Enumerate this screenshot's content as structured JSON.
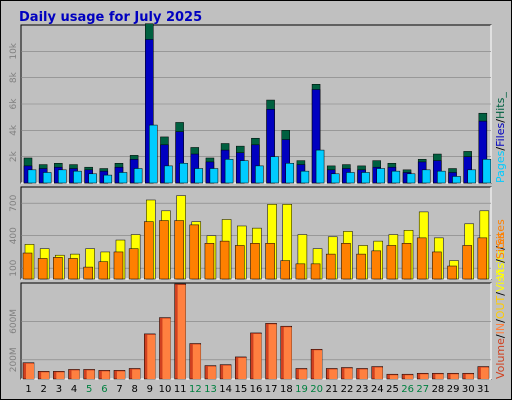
{
  "title": "Daily usage for July 2025",
  "colors": {
    "background": "#c0c0c0",
    "plot_area": "#c0c0c0",
    "hits": "#006040",
    "files": "#0000c0",
    "pages": "#00ccff",
    "visits": "#ffff00",
    "sites": "#ff8000",
    "volume": "#d04020",
    "in": "#ff8040",
    "out": "#ffcc00",
    "weekday_label": "#000000",
    "weekend_label": "#008040",
    "title": "#0000c0",
    "grid": "#808080"
  },
  "chart_data": [
    {
      "type": "bar",
      "panel": "hits",
      "title": "Daily usage for July 2025",
      "categories": [
        "1",
        "2",
        "3",
        "4",
        "5",
        "6",
        "7",
        "8",
        "9",
        "10",
        "11",
        "12",
        "13",
        "14",
        "15",
        "16",
        "17",
        "18",
        "19",
        "20",
        "21",
        "22",
        "23",
        "24",
        "25",
        "26",
        "27",
        "28",
        "29",
        "30",
        "31"
      ],
      "weekend_days": [
        "5",
        "6",
        "12",
        "13",
        "19",
        "20",
        "26",
        "27"
      ],
      "legend": [
        "Pages",
        "/",
        "Files",
        "/",
        "Hits_"
      ],
      "y_tick_labels": [
        "2k",
        "4k",
        "6k",
        "8k",
        "10k"
      ],
      "ylim": [
        0,
        12000
      ],
      "series": [
        {
          "name": "Hits",
          "color": "#006040",
          "values": [
            1900,
            1400,
            1500,
            1400,
            1200,
            1100,
            1500,
            2100,
            12100,
            3500,
            4600,
            2700,
            1900,
            3000,
            2800,
            3400,
            6300,
            4000,
            1700,
            7500,
            1300,
            1400,
            1300,
            1700,
            1500,
            1000,
            1800,
            2200,
            1100,
            2400,
            5300
          ]
        },
        {
          "name": "Files",
          "color": "#0000c0",
          "values": [
            1300,
            1100,
            1200,
            1100,
            1000,
            900,
            1200,
            1800,
            10900,
            2900,
            3900,
            2200,
            1600,
            2500,
            2300,
            2900,
            5600,
            3300,
            1400,
            7100,
            1000,
            1100,
            1000,
            1200,
            1200,
            800,
            1600,
            1700,
            800,
            2000,
            4700
          ]
        },
        {
          "name": "Pages",
          "color": "#00ccff",
          "values": [
            1000,
            800,
            1000,
            900,
            700,
            600,
            800,
            1100,
            4400,
            1300,
            1500,
            1100,
            1100,
            1800,
            1700,
            1300,
            2000,
            1500,
            900,
            2500,
            700,
            800,
            800,
            1100,
            900,
            700,
            1000,
            900,
            500,
            1000,
            1800
          ]
        }
      ]
    },
    {
      "type": "bar",
      "panel": "visits",
      "categories": [
        "1",
        "2",
        "3",
        "4",
        "5",
        "6",
        "7",
        "8",
        "9",
        "10",
        "11",
        "12",
        "13",
        "14",
        "15",
        "16",
        "17",
        "18",
        "19",
        "20",
        "21",
        "22",
        "23",
        "24",
        "25",
        "26",
        "27",
        "28",
        "29",
        "30",
        "31"
      ],
      "legend": [
        "Visits",
        "/",
        "Sites"
      ],
      "y_tick_labels": [
        "100",
        "400",
        "700"
      ],
      "ylim": [
        0,
        850
      ],
      "series": [
        {
          "name": "Visits",
          "color": "#ffff00",
          "values": [
            320,
            280,
            220,
            230,
            280,
            250,
            360,
            410,
            730,
            630,
            770,
            530,
            400,
            550,
            490,
            470,
            690,
            690,
            410,
            280,
            390,
            440,
            310,
            350,
            410,
            450,
            620,
            380,
            170,
            510,
            630
          ]
        },
        {
          "name": "Sites",
          "color": "#ff8000",
          "values": [
            240,
            190,
            200,
            190,
            110,
            160,
            250,
            280,
            530,
            540,
            540,
            500,
            330,
            350,
            310,
            330,
            330,
            170,
            140,
            140,
            230,
            330,
            230,
            260,
            310,
            330,
            380,
            250,
            120,
            310,
            380
          ]
        }
      ]
    },
    {
      "type": "bar",
      "panel": "volume",
      "categories": [
        "1",
        "2",
        "3",
        "4",
        "5",
        "6",
        "7",
        "8",
        "9",
        "10",
        "11",
        "12",
        "13",
        "14",
        "15",
        "16",
        "17",
        "18",
        "19",
        "20",
        "21",
        "22",
        "23",
        "24",
        "25",
        "26",
        "27",
        "28",
        "29",
        "30",
        "31"
      ],
      "legend": [
        "Volume",
        "/",
        "IN",
        "/",
        "OUT",
        "/",
        "Visits",
        "/",
        "Sites"
      ],
      "y_tick_labels": [
        "200M",
        "600M"
      ],
      "ylim": [
        0,
        1000
      ],
      "series": [
        {
          "name": "Volume",
          "color": "#d04020",
          "values": [
            170,
            80,
            80,
            100,
            100,
            90,
            90,
            110,
            470,
            640,
            990,
            370,
            140,
            150,
            230,
            480,
            580,
            550,
            110,
            310,
            110,
            120,
            110,
            130,
            50,
            50,
            60,
            60,
            60,
            60,
            130
          ]
        }
      ]
    }
  ]
}
